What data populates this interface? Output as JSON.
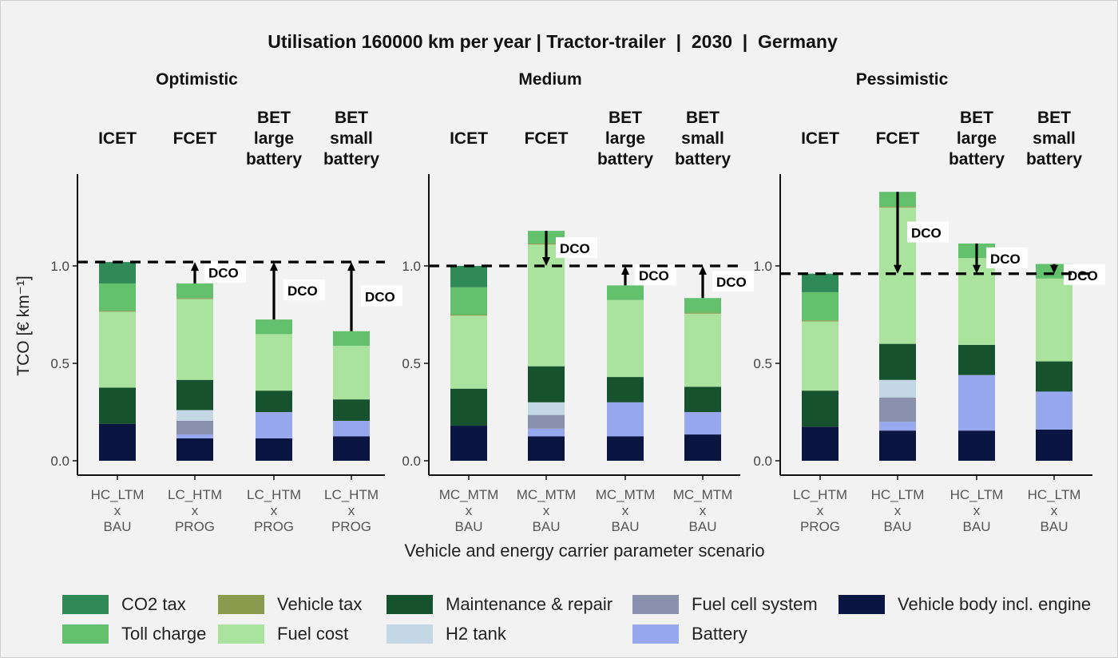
{
  "chart_data": {
    "type": "bar",
    "stacked": true,
    "title": "Utilisation 160000 km per year | Tractor-trailer  |  2030  |  Germany",
    "ylabel": "TCO [€ km⁻¹]",
    "xlabel": "Vehicle and energy carrier parameter scenario",
    "ylim": [
      0,
      1.45
    ],
    "yticks": [
      "0.0",
      "0.5",
      "1.0"
    ],
    "ytick_values": [
      0,
      0.5,
      1.0
    ],
    "dco_label": "DCO",
    "grid": false,
    "legend_position": "bottom",
    "components": [
      {
        "key": "veh",
        "name": "Vehicle body incl. engine",
        "color": "#0b1542"
      },
      {
        "key": "bat",
        "name": "Battery",
        "color": "#97a8ee"
      },
      {
        "key": "fcs",
        "name": "Fuel cell system",
        "color": "#8a91ad"
      },
      {
        "key": "h2",
        "name": "H2 tank",
        "color": "#c3d8e4"
      },
      {
        "key": "maint",
        "name": "Maintenance & repair",
        "color": "#17522e"
      },
      {
        "key": "fuel",
        "name": "Fuel cost",
        "color": "#a9e39e"
      },
      {
        "key": "vtax",
        "name": "Vehicle tax",
        "color": "#8b9a4c"
      },
      {
        "key": "toll",
        "name": "Toll charge",
        "color": "#63c06c"
      },
      {
        "key": "co2",
        "name": "CO2 tax",
        "color": "#2f8a58"
      }
    ],
    "legend_order": [
      "co2",
      "vtax",
      "maint",
      "fcs",
      "veh",
      "toll",
      "fuel",
      "h2",
      "bat"
    ],
    "panels": [
      {
        "name": "Optimistic",
        "dco_line": 1.02,
        "bars": [
          {
            "vehicle": [
              "ICET"
            ],
            "scenario": [
              "HC_LTM",
              "x",
              "BAU"
            ],
            "values": {
              "veh": 0.19,
              "bat": 0,
              "fcs": 0,
              "h2": 0,
              "maint": 0.185,
              "fuel": 0.39,
              "vtax": 0.005,
              "toll": 0.14,
              "co2": 0.11
            },
            "total": 1.02,
            "dco": false
          },
          {
            "vehicle": [
              "FCET"
            ],
            "scenario": [
              "LC_HTM",
              "x",
              "PROG"
            ],
            "values": {
              "veh": 0.115,
              "bat": 0.02,
              "fcs": 0.07,
              "h2": 0.055,
              "maint": 0.155,
              "fuel": 0.415,
              "vtax": 0.005,
              "toll": 0.075,
              "co2": 0
            },
            "total": 0.91,
            "dco": true
          },
          {
            "vehicle": [
              "BET",
              "large",
              "battery"
            ],
            "scenario": [
              "LC_HTM",
              "x",
              "PROG"
            ],
            "values": {
              "veh": 0.115,
              "bat": 0.135,
              "fcs": 0,
              "h2": 0,
              "maint": 0.11,
              "fuel": 0.29,
              "vtax": 0,
              "toll": 0.075,
              "co2": 0
            },
            "total": 0.725,
            "dco": true
          },
          {
            "vehicle": [
              "BET",
              "small",
              "battery"
            ],
            "scenario": [
              "LC_HTM",
              "x",
              "PROG"
            ],
            "values": {
              "veh": 0.125,
              "bat": 0.08,
              "fcs": 0,
              "h2": 0,
              "maint": 0.11,
              "fuel": 0.275,
              "vtax": 0,
              "toll": 0.075,
              "co2": 0
            },
            "total": 0.665,
            "dco": true
          }
        ]
      },
      {
        "name": "Medium",
        "dco_line": 1.0,
        "bars": [
          {
            "vehicle": [
              "ICET"
            ],
            "scenario": [
              "MC_MTM",
              "x",
              "BAU"
            ],
            "values": {
              "veh": 0.18,
              "bat": 0,
              "fcs": 0,
              "h2": 0,
              "maint": 0.19,
              "fuel": 0.375,
              "vtax": 0.005,
              "toll": 0.14,
              "co2": 0.11
            },
            "total": 1.0,
            "dco": false
          },
          {
            "vehicle": [
              "FCET"
            ],
            "scenario": [
              "MC_MTM",
              "x",
              "BAU"
            ],
            "values": {
              "veh": 0.125,
              "bat": 0.04,
              "fcs": 0.07,
              "h2": 0.065,
              "maint": 0.185,
              "fuel": 0.625,
              "vtax": 0.005,
              "toll": 0.065,
              "co2": 0
            },
            "total": 1.18,
            "dco": true
          },
          {
            "vehicle": [
              "BET",
              "large",
              "battery"
            ],
            "scenario": [
              "MC_MTM",
              "x",
              "BAU"
            ],
            "values": {
              "veh": 0.125,
              "bat": 0.175,
              "fcs": 0,
              "h2": 0,
              "maint": 0.13,
              "fuel": 0.395,
              "vtax": 0,
              "toll": 0.075,
              "co2": 0
            },
            "total": 0.9,
            "dco": true
          },
          {
            "vehicle": [
              "BET",
              "small",
              "battery"
            ],
            "scenario": [
              "MC_MTM",
              "x",
              "BAU"
            ],
            "values": {
              "veh": 0.135,
              "bat": 0.115,
              "fcs": 0,
              "h2": 0,
              "maint": 0.13,
              "fuel": 0.375,
              "vtax": 0.005,
              "toll": 0.075,
              "co2": 0
            },
            "total": 0.835,
            "dco": true
          }
        ]
      },
      {
        "name": "Pessimistic",
        "dco_line": 0.96,
        "bars": [
          {
            "vehicle": [
              "ICET"
            ],
            "scenario": [
              "LC_HTM",
              "x",
              "PROG"
            ],
            "values": {
              "veh": 0.175,
              "bat": 0,
              "fcs": 0,
              "h2": 0,
              "maint": 0.185,
              "fuel": 0.355,
              "vtax": 0.005,
              "toll": 0.145,
              "co2": 0.095
            },
            "total": 0.96,
            "dco": false
          },
          {
            "vehicle": [
              "FCET"
            ],
            "scenario": [
              "HC_LTM",
              "x",
              "BAU"
            ],
            "values": {
              "veh": 0.155,
              "bat": 0.045,
              "fcs": 0.125,
              "h2": 0.09,
              "maint": 0.185,
              "fuel": 0.7,
              "vtax": 0.005,
              "toll": 0.075,
              "co2": 0
            },
            "total": 1.38,
            "dco": true
          },
          {
            "vehicle": [
              "BET",
              "large",
              "battery"
            ],
            "scenario": [
              "HC_LTM",
              "x",
              "BAU"
            ],
            "values": {
              "veh": 0.155,
              "bat": 0.285,
              "fcs": 0,
              "h2": 0,
              "maint": 0.155,
              "fuel": 0.445,
              "vtax": 0,
              "toll": 0.075,
              "co2": 0
            },
            "total": 1.115,
            "dco": true
          },
          {
            "vehicle": [
              "BET",
              "small",
              "battery"
            ],
            "scenario": [
              "HC_LTM",
              "x",
              "BAU"
            ],
            "values": {
              "veh": 0.16,
              "bat": 0.195,
              "fcs": 0,
              "h2": 0,
              "maint": 0.155,
              "fuel": 0.425,
              "vtax": 0,
              "toll": 0.075,
              "co2": 0
            },
            "total": 1.01,
            "dco": true
          }
        ]
      }
    ]
  }
}
